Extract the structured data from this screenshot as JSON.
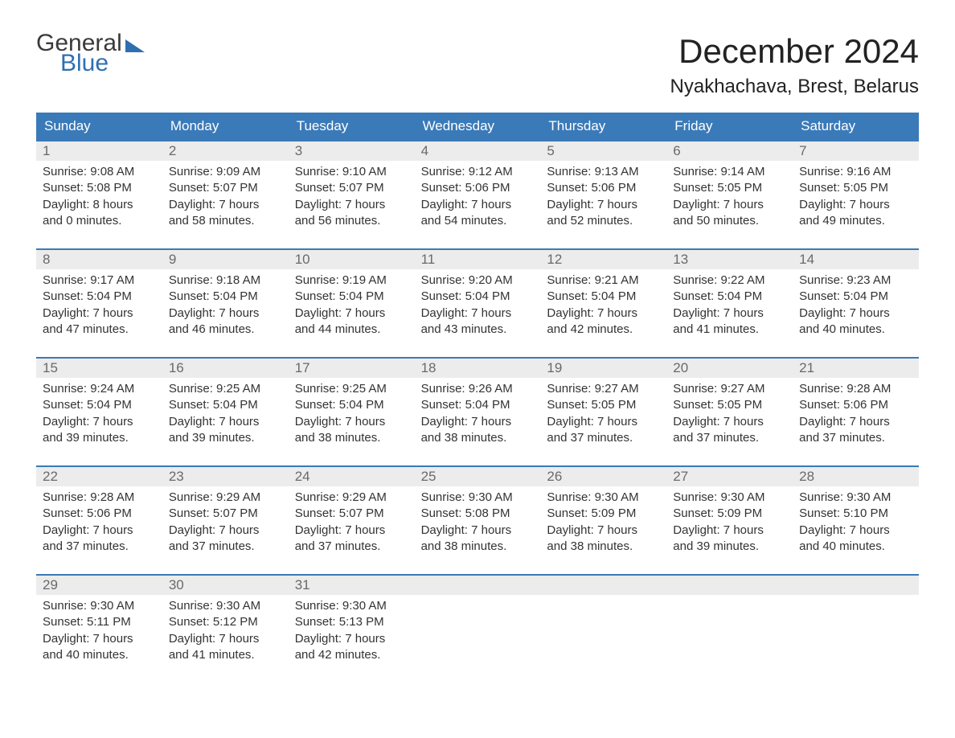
{
  "brand": {
    "word1": "General",
    "word2": "Blue"
  },
  "title": "December 2024",
  "location": "Nyakhachava, Brest, Belarus",
  "header_bg": "#3b7ab8",
  "header_fg": "#ffffff",
  "daynum_bg": "#ececec",
  "daynum_fg": "#6a6a6a",
  "text_color": "#333333",
  "week_border": "#3b7ab8",
  "background": "#ffffff",
  "font_family": "Arial, Helvetica, sans-serif",
  "title_fontsize": 42,
  "location_fontsize": 24,
  "dow_fontsize": 17,
  "cell_fontsize": 15,
  "days_of_week": [
    "Sunday",
    "Monday",
    "Tuesday",
    "Wednesday",
    "Thursday",
    "Friday",
    "Saturday"
  ],
  "labels": {
    "sunrise": "Sunrise:",
    "sunset": "Sunset:",
    "daylight": "Daylight:"
  },
  "weeks": [
    [
      {
        "n": "1",
        "sunrise": "9:08 AM",
        "sunset": "5:08 PM",
        "daylight": "8 hours and 0 minutes."
      },
      {
        "n": "2",
        "sunrise": "9:09 AM",
        "sunset": "5:07 PM",
        "daylight": "7 hours and 58 minutes."
      },
      {
        "n": "3",
        "sunrise": "9:10 AM",
        "sunset": "5:07 PM",
        "daylight": "7 hours and 56 minutes."
      },
      {
        "n": "4",
        "sunrise": "9:12 AM",
        "sunset": "5:06 PM",
        "daylight": "7 hours and 54 minutes."
      },
      {
        "n": "5",
        "sunrise": "9:13 AM",
        "sunset": "5:06 PM",
        "daylight": "7 hours and 52 minutes."
      },
      {
        "n": "6",
        "sunrise": "9:14 AM",
        "sunset": "5:05 PM",
        "daylight": "7 hours and 50 minutes."
      },
      {
        "n": "7",
        "sunrise": "9:16 AM",
        "sunset": "5:05 PM",
        "daylight": "7 hours and 49 minutes."
      }
    ],
    [
      {
        "n": "8",
        "sunrise": "9:17 AM",
        "sunset": "5:04 PM",
        "daylight": "7 hours and 47 minutes."
      },
      {
        "n": "9",
        "sunrise": "9:18 AM",
        "sunset": "5:04 PM",
        "daylight": "7 hours and 46 minutes."
      },
      {
        "n": "10",
        "sunrise": "9:19 AM",
        "sunset": "5:04 PM",
        "daylight": "7 hours and 44 minutes."
      },
      {
        "n": "11",
        "sunrise": "9:20 AM",
        "sunset": "5:04 PM",
        "daylight": "7 hours and 43 minutes."
      },
      {
        "n": "12",
        "sunrise": "9:21 AM",
        "sunset": "5:04 PM",
        "daylight": "7 hours and 42 minutes."
      },
      {
        "n": "13",
        "sunrise": "9:22 AM",
        "sunset": "5:04 PM",
        "daylight": "7 hours and 41 minutes."
      },
      {
        "n": "14",
        "sunrise": "9:23 AM",
        "sunset": "5:04 PM",
        "daylight": "7 hours and 40 minutes."
      }
    ],
    [
      {
        "n": "15",
        "sunrise": "9:24 AM",
        "sunset": "5:04 PM",
        "daylight": "7 hours and 39 minutes."
      },
      {
        "n": "16",
        "sunrise": "9:25 AM",
        "sunset": "5:04 PM",
        "daylight": "7 hours and 39 minutes."
      },
      {
        "n": "17",
        "sunrise": "9:25 AM",
        "sunset": "5:04 PM",
        "daylight": "7 hours and 38 minutes."
      },
      {
        "n": "18",
        "sunrise": "9:26 AM",
        "sunset": "5:04 PM",
        "daylight": "7 hours and 38 minutes."
      },
      {
        "n": "19",
        "sunrise": "9:27 AM",
        "sunset": "5:05 PM",
        "daylight": "7 hours and 37 minutes."
      },
      {
        "n": "20",
        "sunrise": "9:27 AM",
        "sunset": "5:05 PM",
        "daylight": "7 hours and 37 minutes."
      },
      {
        "n": "21",
        "sunrise": "9:28 AM",
        "sunset": "5:06 PM",
        "daylight": "7 hours and 37 minutes."
      }
    ],
    [
      {
        "n": "22",
        "sunrise": "9:28 AM",
        "sunset": "5:06 PM",
        "daylight": "7 hours and 37 minutes."
      },
      {
        "n": "23",
        "sunrise": "9:29 AM",
        "sunset": "5:07 PM",
        "daylight": "7 hours and 37 minutes."
      },
      {
        "n": "24",
        "sunrise": "9:29 AM",
        "sunset": "5:07 PM",
        "daylight": "7 hours and 37 minutes."
      },
      {
        "n": "25",
        "sunrise": "9:30 AM",
        "sunset": "5:08 PM",
        "daylight": "7 hours and 38 minutes."
      },
      {
        "n": "26",
        "sunrise": "9:30 AM",
        "sunset": "5:09 PM",
        "daylight": "7 hours and 38 minutes."
      },
      {
        "n": "27",
        "sunrise": "9:30 AM",
        "sunset": "5:09 PM",
        "daylight": "7 hours and 39 minutes."
      },
      {
        "n": "28",
        "sunrise": "9:30 AM",
        "sunset": "5:10 PM",
        "daylight": "7 hours and 40 minutes."
      }
    ],
    [
      {
        "n": "29",
        "sunrise": "9:30 AM",
        "sunset": "5:11 PM",
        "daylight": "7 hours and 40 minutes."
      },
      {
        "n": "30",
        "sunrise": "9:30 AM",
        "sunset": "5:12 PM",
        "daylight": "7 hours and 41 minutes."
      },
      {
        "n": "31",
        "sunrise": "9:30 AM",
        "sunset": "5:13 PM",
        "daylight": "7 hours and 42 minutes."
      },
      null,
      null,
      null,
      null
    ]
  ]
}
